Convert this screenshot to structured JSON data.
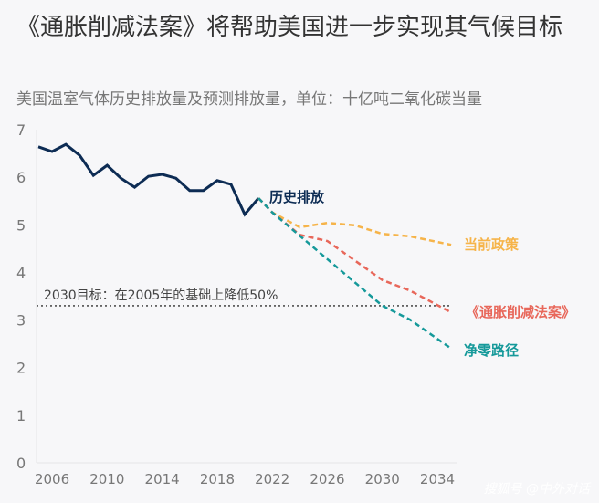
{
  "title": "《通胀削减法案》将帮助美国进一步实现其气候目标",
  "subtitle": "美国温室气体历史排放量及预测排放量，单位：十亿吨二氧化碳当量",
  "credit": "搜狐号 @中外对话",
  "chart_data": {
    "type": "line",
    "xlim": [
      2005,
      2035
    ],
    "ylim": [
      0,
      7
    ],
    "xticks": [
      2006,
      2010,
      2014,
      2018,
      2022,
      2026,
      2030,
      2034
    ],
    "yticks": [
      0,
      1,
      2,
      3,
      4,
      5,
      6,
      7
    ],
    "target": {
      "value": 3.3,
      "label": "2030目标：在2005年的基础上降低50%"
    },
    "series": [
      {
        "name": "历史排放",
        "color": "#0d2c54",
        "dashed": false,
        "x": [
          2005,
          2006,
          2007,
          2008,
          2009,
          2010,
          2011,
          2012,
          2013,
          2014,
          2015,
          2016,
          2017,
          2018,
          2019,
          2020,
          2021
        ],
        "y": [
          6.64,
          6.54,
          6.69,
          6.46,
          6.04,
          6.25,
          5.98,
          5.79,
          6.02,
          6.06,
          5.98,
          5.72,
          5.72,
          5.93,
          5.85,
          5.22,
          5.56
        ]
      },
      {
        "name": "当前政策",
        "color": "#f6b44a",
        "dashed": true,
        "x": [
          2021,
          2022,
          2024,
          2026,
          2028,
          2030,
          2032,
          2035
        ],
        "y": [
          5.56,
          5.26,
          4.95,
          5.04,
          4.99,
          4.81,
          4.76,
          4.58
        ]
      },
      {
        "name": "《通胀削减法案》",
        "color": "#e8675a",
        "dashed": true,
        "x": [
          2021,
          2022,
          2024,
          2026,
          2028,
          2030,
          2032,
          2035
        ],
        "y": [
          5.56,
          5.26,
          4.79,
          4.66,
          4.25,
          3.84,
          3.62,
          3.16
        ]
      },
      {
        "name": "净零路径",
        "color": "#15999a",
        "dashed": true,
        "x": [
          2021,
          2022,
          2026,
          2030,
          2032,
          2035
        ],
        "y": [
          5.56,
          5.26,
          4.28,
          3.3,
          3.01,
          2.4
        ]
      }
    ]
  }
}
